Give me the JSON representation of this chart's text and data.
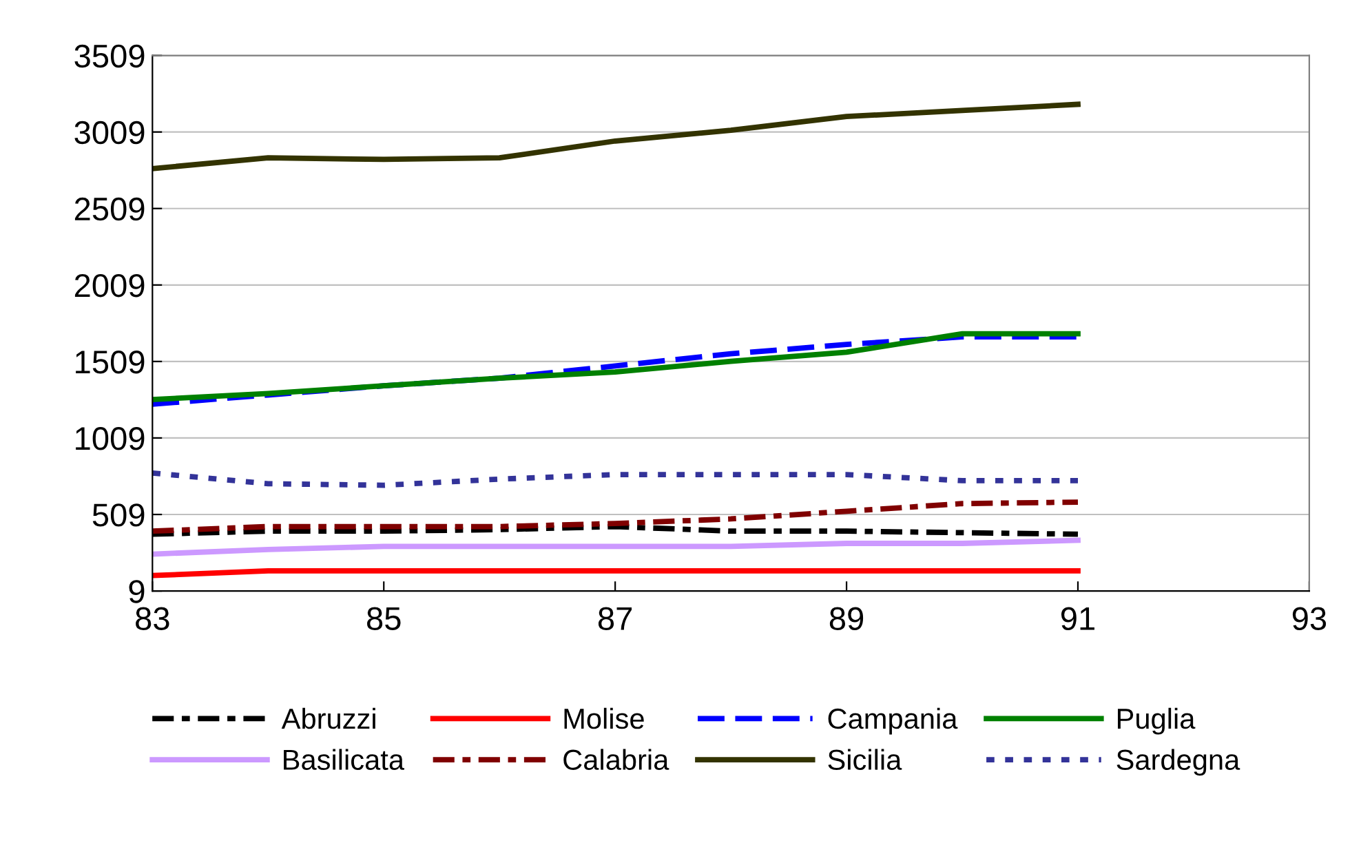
{
  "chart_data": {
    "type": "line",
    "x": [
      83,
      84,
      85,
      86,
      87,
      88,
      89,
      90,
      91
    ],
    "series": [
      {
        "name": "Abruzzi",
        "color": "#000000",
        "line_style": "dashdot",
        "values": [
          380,
          400,
          400,
          410,
          430,
          400,
          400,
          390,
          380
        ]
      },
      {
        "name": "Molise",
        "color": "#ff0000",
        "line_style": "solid",
        "values": [
          110,
          140,
          140,
          140,
          140,
          140,
          140,
          140,
          140
        ]
      },
      {
        "name": "Campania",
        "color": "#0000ff",
        "line_style": "dashed",
        "values": [
          1230,
          1290,
          1350,
          1400,
          1480,
          1560,
          1620,
          1670,
          1670
        ]
      },
      {
        "name": "Puglia",
        "color": "#008000",
        "line_style": "solid",
        "values": [
          1260,
          1300,
          1350,
          1400,
          1440,
          1510,
          1570,
          1690,
          1690
        ]
      },
      {
        "name": "Basilicata",
        "color": "#cc99ff",
        "line_style": "solid",
        "values": [
          250,
          280,
          300,
          300,
          300,
          300,
          320,
          320,
          340
        ]
      },
      {
        "name": "Calabria",
        "color": "#800000",
        "line_style": "dashdot",
        "values": [
          400,
          430,
          430,
          430,
          450,
          480,
          530,
          580,
          590
        ]
      },
      {
        "name": "Sicilia",
        "color": "#333300",
        "line_style": "solid",
        "values": [
          2770,
          2840,
          2830,
          2840,
          2950,
          3020,
          3110,
          3150,
          3190
        ]
      },
      {
        "name": "Sardegna",
        "color": "#333399",
        "line_style": "dotted",
        "values": [
          780,
          710,
          700,
          740,
          770,
          770,
          770,
          730,
          730
        ]
      }
    ],
    "xlim": [
      83,
      93
    ],
    "xticks": [
      83,
      85,
      87,
      89,
      91,
      93
    ],
    "ylim": [
      9,
      3509
    ],
    "yticks": [
      9,
      509,
      1009,
      1509,
      2009,
      2509,
      3009,
      3509
    ],
    "grid": "y",
    "legend": "bottom",
    "marker": "none"
  }
}
